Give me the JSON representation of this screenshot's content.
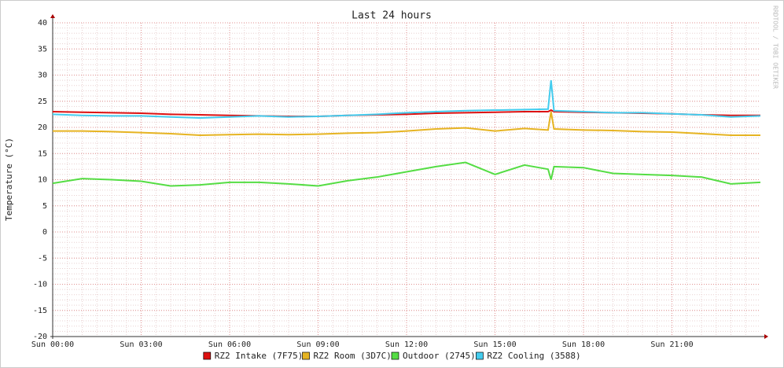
{
  "chart_data": {
    "type": "line",
    "title": "Last 24 hours",
    "y_label": "Temperature (°C)",
    "watermark": "RRDTOOL / TOBI OETIKER",
    "x": [
      0,
      1,
      2,
      3,
      4,
      5,
      6,
      7,
      8,
      9,
      10,
      11,
      12,
      13,
      14,
      15,
      16,
      16.8,
      16.9,
      17,
      18,
      19,
      20,
      21,
      22,
      23,
      24
    ],
    "xlim": [
      0,
      24
    ],
    "xticks": [
      {
        "value": 0,
        "label": "Sun 00:00"
      },
      {
        "value": 3,
        "label": "Sun 03:00"
      },
      {
        "value": 6,
        "label": "Sun 06:00"
      },
      {
        "value": 9,
        "label": "Sun 09:00"
      },
      {
        "value": 12,
        "label": "Sun 12:00"
      },
      {
        "value": 15,
        "label": "Sun 15:00"
      },
      {
        "value": 18,
        "label": "Sun 18:00"
      },
      {
        "value": 21,
        "label": "Sun 21:00"
      }
    ],
    "ylim": [
      -20,
      40
    ],
    "yticks": [
      -20,
      -15,
      -10,
      -5,
      0,
      5,
      10,
      15,
      20,
      25,
      30,
      35,
      40
    ],
    "grid": true,
    "legend": "bottom",
    "series": [
      {
        "name": "RZ2 Intake (7F75)",
        "color": "#dd1111",
        "values": [
          23.0,
          22.9,
          22.8,
          22.7,
          22.5,
          22.4,
          22.3,
          22.2,
          22.1,
          22.1,
          22.3,
          22.4,
          22.5,
          22.7,
          22.8,
          22.9,
          23.0,
          23.0,
          23.3,
          23.0,
          22.9,
          22.8,
          22.7,
          22.6,
          22.4,
          22.3,
          22.3
        ]
      },
      {
        "name": "RZ2 Room (3D7C)",
        "color": "#e6b422",
        "values": [
          19.3,
          19.3,
          19.2,
          19.0,
          18.8,
          18.5,
          18.6,
          18.7,
          18.6,
          18.7,
          18.9,
          19.0,
          19.3,
          19.7,
          19.9,
          19.3,
          19.8,
          19.5,
          23.0,
          19.7,
          19.5,
          19.4,
          19.2,
          19.1,
          18.8,
          18.5,
          18.5
        ]
      },
      {
        "name": "Outdoor (2745)",
        "color": "#55dd44",
        "values": [
          9.3,
          10.2,
          10.0,
          9.7,
          8.8,
          9.0,
          9.5,
          9.5,
          9.2,
          8.8,
          9.8,
          10.5,
          11.5,
          12.5,
          13.3,
          11.0,
          12.8,
          12.0,
          10.0,
          12.5,
          12.3,
          11.2,
          11.0,
          10.8,
          10.5,
          9.2,
          9.5
        ]
      },
      {
        "name": "RZ2 Cooling (3588)",
        "color": "#44ccee",
        "values": [
          22.5,
          22.3,
          22.2,
          22.2,
          22.0,
          21.8,
          22.0,
          22.2,
          22.0,
          22.1,
          22.3,
          22.5,
          22.8,
          23.0,
          23.2,
          23.3,
          23.4,
          23.5,
          29.0,
          23.2,
          23.0,
          22.8,
          22.8,
          22.6,
          22.4,
          22.0,
          22.2
        ]
      }
    ]
  }
}
